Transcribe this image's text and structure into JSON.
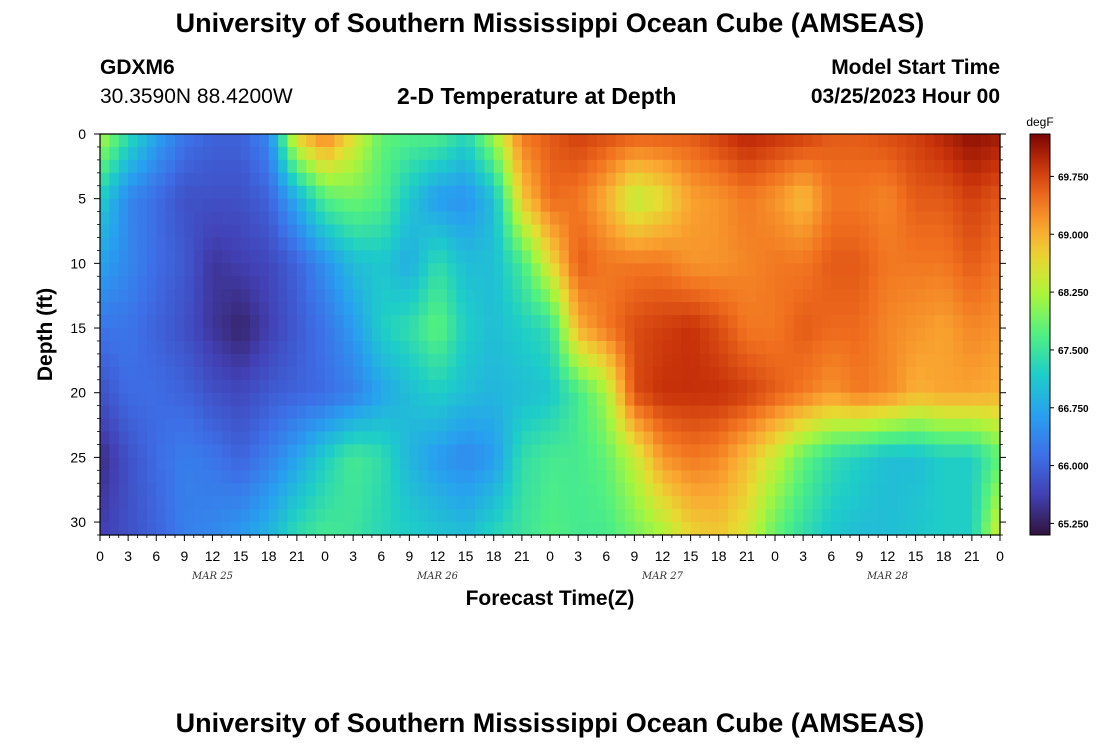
{
  "header": {
    "title": "University of Southern Mississippi Ocean Cube (AMSEAS)",
    "station": "GDXM6",
    "coords": "30.3590N  88.4200W",
    "subtitle": "2-D Temperature at Depth",
    "model_start_label": "Model Start Time",
    "model_start_value": "03/25/2023 Hour 00"
  },
  "footer": {
    "title": "University of Southern Mississippi Ocean Cube (AMSEAS)"
  },
  "chart_data": {
    "type": "heatmap",
    "title": "2-D Temperature at Depth",
    "xlabel": "Forecast Time(Z)",
    "ylabel": "Depth (ft)",
    "x_ticks": [
      "0",
      "3",
      "6",
      "9",
      "12",
      "15",
      "18",
      "21",
      "0",
      "3",
      "6",
      "9",
      "12",
      "15",
      "18",
      "21",
      "0",
      "3",
      "6",
      "9",
      "12",
      "15",
      "18",
      "21",
      "0",
      "3",
      "6",
      "9",
      "12",
      "15",
      "18",
      "21",
      "0"
    ],
    "x_range_hours": [
      0,
      96
    ],
    "day_labels": [
      "MAR 25",
      "MAR 26",
      "MAR 27",
      "MAR 28"
    ],
    "y_ticks": [
      "0",
      "5",
      "10",
      "15",
      "20",
      "25",
      "30"
    ],
    "y_range": [
      0,
      31
    ],
    "colorbar": {
      "unit": "degF",
      "min": 65.1,
      "max": 70.3,
      "ticks": [
        "69.750",
        "69.000",
        "68.250",
        "67.500",
        "66.750",
        "66.000",
        "65.250"
      ],
      "tick_values": [
        69.75,
        69.0,
        68.25,
        67.5,
        66.75,
        66.0,
        65.25
      ]
    },
    "depths_ft": [
      0,
      5,
      10,
      15,
      20,
      25,
      31
    ],
    "times_h": [
      0,
      3,
      6,
      9,
      12,
      15,
      18,
      21,
      24,
      27,
      30,
      33,
      36,
      39,
      42,
      45,
      48,
      51,
      54,
      57,
      60,
      63,
      66,
      69,
      72,
      75,
      78,
      81,
      84,
      87,
      90,
      93,
      96
    ],
    "values": [
      [
        68.3,
        67.4,
        66.7,
        66.2,
        66.0,
        66.0,
        66.4,
        68.8,
        69.4,
        68.6,
        67.8,
        67.7,
        67.7,
        67.3,
        68.2,
        69.4,
        69.6,
        69.8,
        69.7,
        69.6,
        69.6,
        69.6,
        69.8,
        70.0,
        69.9,
        69.8,
        69.6,
        69.6,
        69.7,
        69.8,
        70.0,
        70.2,
        70.1
      ],
      [
        67.2,
        66.4,
        66.1,
        65.8,
        65.8,
        65.8,
        66.0,
        66.8,
        67.7,
        67.9,
        67.7,
        67.1,
        66.6,
        66.5,
        67.0,
        68.8,
        69.5,
        69.4,
        69.0,
        68.3,
        68.6,
        69.1,
        69.2,
        69.4,
        69.2,
        68.9,
        69.4,
        69.4,
        69.3,
        69.6,
        69.6,
        69.8,
        69.6
      ],
      [
        66.7,
        66.4,
        66.1,
        65.9,
        65.5,
        65.6,
        65.7,
        66.0,
        66.5,
        67.0,
        67.1,
        66.8,
        67.4,
        67.0,
        67.0,
        67.6,
        68.6,
        69.6,
        69.4,
        69.4,
        69.4,
        69.2,
        69.2,
        69.3,
        69.4,
        69.4,
        69.6,
        69.6,
        69.4,
        69.4,
        69.4,
        69.6,
        69.4
      ],
      [
        66.2,
        66.2,
        66.0,
        65.8,
        65.5,
        65.3,
        65.6,
        65.9,
        66.2,
        66.6,
        67.2,
        67.4,
        67.8,
        67.2,
        67.0,
        67.2,
        67.4,
        69.0,
        69.4,
        69.7,
        69.8,
        69.9,
        69.7,
        69.4,
        69.4,
        69.6,
        69.5,
        69.5,
        69.3,
        69.2,
        69.1,
        69.3,
        69.2
      ],
      [
        65.8,
        66.1,
        66.1,
        66.0,
        65.8,
        65.7,
        65.9,
        66.0,
        66.1,
        66.3,
        66.7,
        67.0,
        67.2,
        67.0,
        66.9,
        67.0,
        67.1,
        67.6,
        68.2,
        69.7,
        69.9,
        69.9,
        69.9,
        69.8,
        69.6,
        69.4,
        69.2,
        69.4,
        69.3,
        69.0,
        69.1,
        69.1,
        69.0
      ],
      [
        65.4,
        65.8,
        66.1,
        66.3,
        66.2,
        66.0,
        66.3,
        66.7,
        67.2,
        67.6,
        67.4,
        66.9,
        66.6,
        66.4,
        66.6,
        67.4,
        67.6,
        67.6,
        67.8,
        68.4,
        69.2,
        69.4,
        69.3,
        68.9,
        68.4,
        67.8,
        67.4,
        67.2,
        67.0,
        67.0,
        67.2,
        67.2,
        67.8
      ],
      [
        65.6,
        65.8,
        66.0,
        66.3,
        66.4,
        66.6,
        66.9,
        67.4,
        67.6,
        67.5,
        67.3,
        67.2,
        67.1,
        67.0,
        67.3,
        67.5,
        67.7,
        67.6,
        67.6,
        67.9,
        68.2,
        68.7,
        68.8,
        68.5,
        67.8,
        67.4,
        67.1,
        67.0,
        67.0,
        67.1,
        67.2,
        67.2,
        68.6
      ]
    ]
  }
}
